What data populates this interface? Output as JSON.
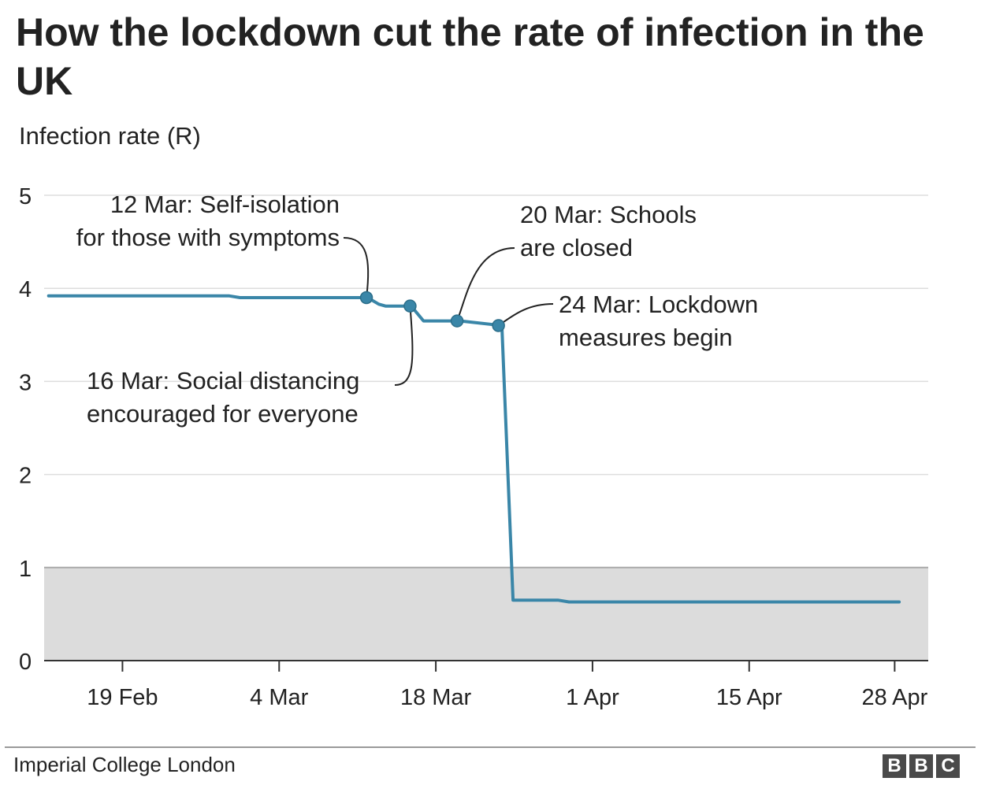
{
  "title": "How the lockdown cut the rate of infection in the UK",
  "subtitle": "Infection rate (R)",
  "source": "Imperial College London",
  "logo": [
    "B",
    "B",
    "C"
  ],
  "colors": {
    "line": "#3a86a8",
    "shade": "#dcdcdc",
    "grid": "#dddddd",
    "axis": "#333333"
  },
  "chart_data": {
    "type": "line",
    "title": "How the lockdown cut the rate of infection in the UK",
    "ylabel": "Infection rate (R)",
    "xlabel": "",
    "ylim": [
      0,
      5
    ],
    "xlim_days": [
      0,
      79
    ],
    "date_origin": "12 Feb",
    "yticks": [
      0,
      1,
      2,
      3,
      4,
      5
    ],
    "xticks": [
      {
        "label": "19 Feb",
        "day": 7
      },
      {
        "label": "4 Mar",
        "day": 21
      },
      {
        "label": "18 Mar",
        "day": 35
      },
      {
        "label": "1 Apr",
        "day": 49
      },
      {
        "label": "15 Apr",
        "day": 63
      },
      {
        "label": "28 Apr",
        "day": 76
      }
    ],
    "shaded_region": {
      "y_from": 0,
      "y_to": 1
    },
    "series": [
      {
        "name": "R",
        "points": [
          [
            0.4,
            3.92
          ],
          [
            16.5,
            3.92
          ],
          [
            17.5,
            3.9
          ],
          [
            28.9,
            3.9
          ],
          [
            29.9,
            3.83
          ],
          [
            30.5,
            3.81
          ],
          [
            32.8,
            3.81
          ],
          [
            33.9,
            3.65
          ],
          [
            37.2,
            3.65
          ],
          [
            40.9,
            3.6
          ],
          [
            41.9,
            0.65
          ],
          [
            45.9,
            0.65
          ],
          [
            46.9,
            0.63
          ],
          [
            76.4,
            0.63
          ]
        ]
      }
    ],
    "markers": [
      {
        "day": 28.8,
        "r": 3.9
      },
      {
        "day": 32.7,
        "r": 3.81
      },
      {
        "day": 36.9,
        "r": 3.65
      },
      {
        "day": 40.6,
        "r": 3.6
      }
    ],
    "annotations": [
      {
        "id": "self-isolation",
        "lines": [
          "12 Mar: Self-isolation",
          "for those with symptoms"
        ]
      },
      {
        "id": "social-distancing",
        "lines": [
          "16 Mar: Social distancing",
          "encouraged for everyone"
        ]
      },
      {
        "id": "schools",
        "lines": [
          "20 Mar: Schools",
          "are closed"
        ]
      },
      {
        "id": "lockdown",
        "lines": [
          "24 Mar: Lockdown",
          "measures begin"
        ]
      }
    ]
  }
}
